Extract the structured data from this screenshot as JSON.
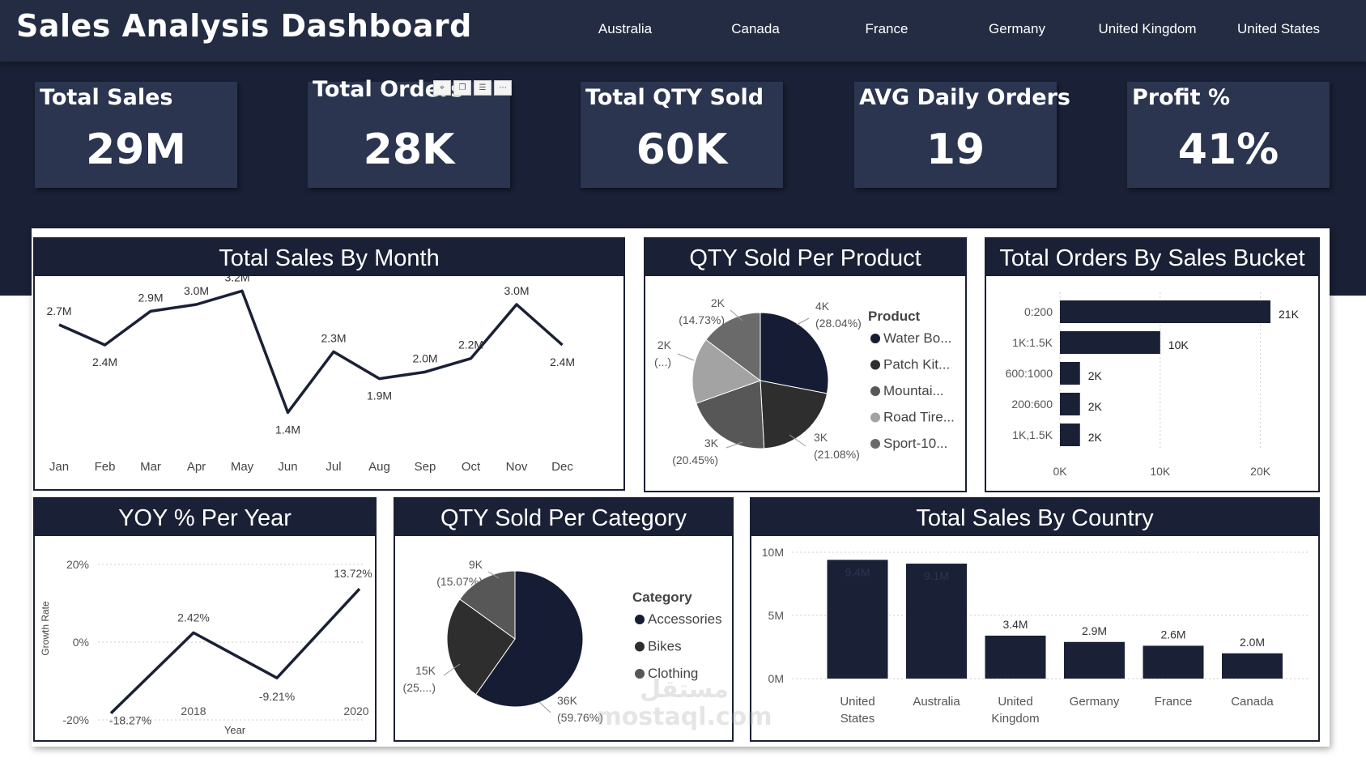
{
  "header": {
    "title": "Sales Analysis Dashboard",
    "countries": [
      "Australia",
      "Canada",
      "France",
      "Germany",
      "United Kingdom",
      "United States"
    ]
  },
  "kpis": [
    {
      "label": "Total Sales",
      "value": "29M"
    },
    {
      "label": "Total Orders",
      "value": "28K"
    },
    {
      "label": "Total QTY Sold",
      "value": "60K"
    },
    {
      "label": "AVG Daily Orders",
      "value": "19"
    },
    {
      "label": "Profit %",
      "value": "41%"
    }
  ],
  "panels": {
    "sales_by_month": "Total Sales By Month",
    "qty_per_product": "QTY Sold Per Product",
    "orders_by_bucket": "Total Orders By Sales Bucket",
    "yoy": "YOY % Per Year",
    "qty_per_category": "QTY Sold Per Category",
    "sales_by_country": "Total Sales By Country"
  },
  "colors": {
    "navy": "#1a2035",
    "card": "#2b3550",
    "pie": [
      "#161c33",
      "#2e2e2e",
      "#575757",
      "#a3a3a3",
      "#6a6a6a"
    ]
  },
  "watermark": {
    "line1": "مستقل",
    "line2": "mostaql.com"
  },
  "chart_data": [
    {
      "type": "line",
      "title": "Total Sales By Month",
      "categories": [
        "Jan",
        "Feb",
        "Mar",
        "Apr",
        "May",
        "Jun",
        "Jul",
        "Aug",
        "Sep",
        "Oct",
        "Nov",
        "Dec"
      ],
      "values": [
        2.7,
        2.4,
        2.9,
        3.0,
        3.2,
        1.4,
        2.3,
        1.9,
        2.0,
        2.2,
        3.0,
        2.4
      ],
      "labels": [
        "2.7M",
        "2.4M",
        "2.9M",
        "3.0M",
        "3.2M",
        "1.4M",
        "2.3M",
        "1.9M",
        "2.0M",
        "2.2M",
        "3.0M",
        "2.4M"
      ],
      "ylim": [
        1.2,
        3.3
      ]
    },
    {
      "type": "pie",
      "title": "QTY Sold Per Product",
      "legend_title": "Product",
      "legend": [
        "Water Bo...",
        "Patch Kit...",
        "Mountai...",
        "Road Tire...",
        "Sport-10..."
      ],
      "slices": [
        {
          "value": 28.04,
          "label": "4K",
          "pct": "(28.04%)"
        },
        {
          "value": 21.08,
          "label": "3K",
          "pct": "(21.08%)"
        },
        {
          "value": 20.45,
          "label": "3K",
          "pct": "(20.45%)"
        },
        {
          "value": 15.7,
          "label": "2K",
          "pct": "(...)"
        },
        {
          "value": 14.73,
          "label": "2K",
          "pct": "(14.73%)"
        }
      ]
    },
    {
      "type": "bar",
      "orientation": "horizontal",
      "title": "Total Orders By Sales Bucket",
      "categories": [
        "0:200",
        "1K:1.5K",
        "600:1000",
        "200:600",
        "1K,1.5K"
      ],
      "values": [
        21,
        10,
        2,
        2,
        2
      ],
      "labels": [
        "21K",
        "10K",
        "2K",
        "2K",
        "2K"
      ],
      "xticks": [
        "0K",
        "10K",
        "20K"
      ],
      "xlim": [
        0,
        21
      ]
    },
    {
      "type": "line",
      "title": "YOY % Per Year",
      "ylabel": "Growth Rate",
      "xlabel": "Year",
      "x": [
        2017,
        2018,
        2019,
        2020
      ],
      "values": [
        -18.27,
        2.42,
        -9.21,
        13.72
      ],
      "labels": [
        "-18.27%",
        "2.42%",
        "-9.21%",
        "13.72%"
      ],
      "xticks": [
        "2018",
        "2020"
      ],
      "yticks": [
        "20%",
        "0%",
        "-20%"
      ],
      "ylim": [
        -20,
        20
      ]
    },
    {
      "type": "pie",
      "title": "QTY Sold Per Category",
      "legend_title": "Category",
      "legend": [
        "Accessories",
        "Bikes",
        "Clothing"
      ],
      "slices": [
        {
          "value": 59.76,
          "label": "36K",
          "pct": "(59.76%)"
        },
        {
          "value": 25.17,
          "label": "15K",
          "pct": "(25....)"
        },
        {
          "value": 15.07,
          "label": "9K",
          "pct": "(15.07%)"
        }
      ]
    },
    {
      "type": "bar",
      "title": "Total Sales By Country",
      "categories": [
        [
          "United",
          "States"
        ],
        [
          "Australia"
        ],
        [
          "United",
          "Kingdom"
        ],
        [
          "Germany"
        ],
        [
          "France"
        ],
        [
          "Canada"
        ]
      ],
      "values": [
        9.4,
        9.1,
        3.4,
        2.9,
        2.6,
        2.0
      ],
      "labels": [
        "9.4M",
        "9.1M",
        "3.4M",
        "2.9M",
        "2.6M",
        "2.0M"
      ],
      "yticks": [
        "10M",
        "5M",
        "0M"
      ],
      "ylim": [
        0,
        10
      ]
    }
  ]
}
